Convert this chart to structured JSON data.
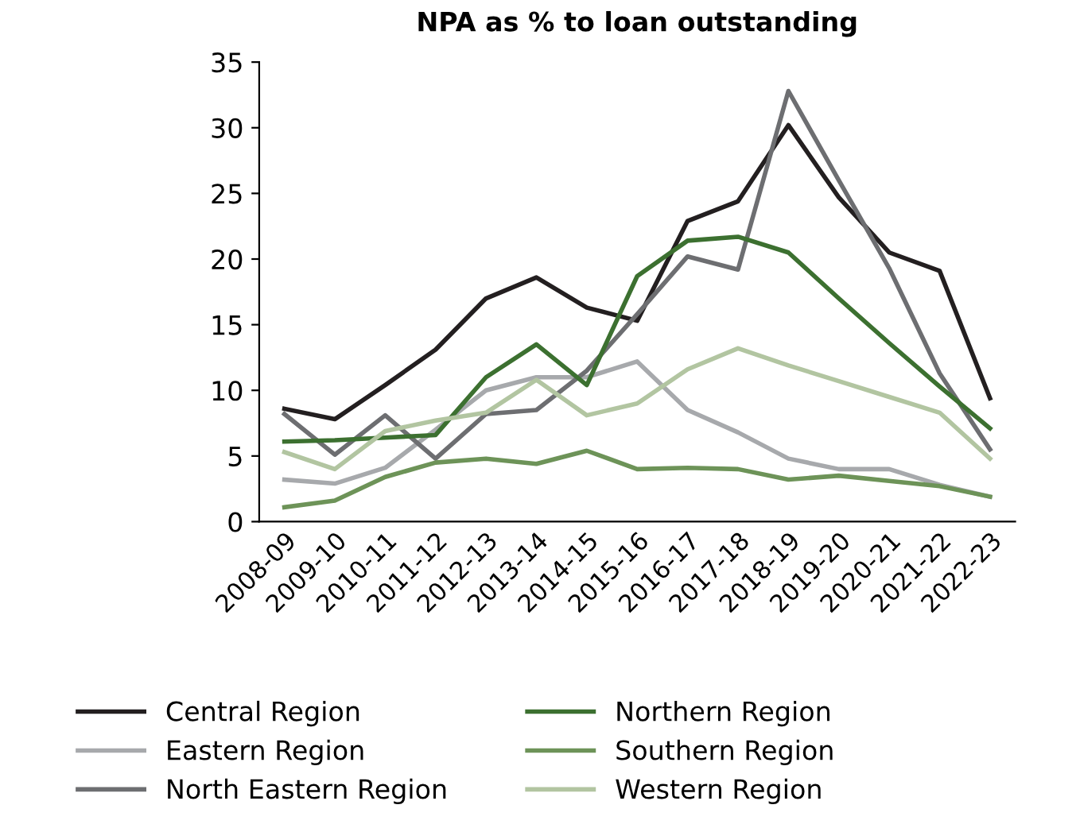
{
  "chart_data": {
    "type": "line",
    "title": "NPA as % to loan outstanding",
    "categories": [
      "2008-09",
      "2009-10",
      "2010-11",
      "2011-12",
      "2012-13",
      "2013-14",
      "2014-15",
      "2015-16",
      "2016-17",
      "2017-18",
      "2018-19",
      "2019-20",
      "2020-21",
      "2021-22",
      "2022-23"
    ],
    "series": [
      {
        "name": "Central Region",
        "color": "#231f20",
        "values": [
          8.6,
          7.8,
          10.4,
          13.1,
          17.0,
          18.6,
          16.3,
          15.3,
          22.9,
          24.4,
          30.2,
          24.7,
          20.5,
          19.1,
          9.4
        ]
      },
      {
        "name": "Eastern Region",
        "color": "#a7a9ac",
        "values": [
          3.2,
          2.9,
          4.1,
          7.0,
          10.0,
          11.0,
          11.0,
          12.2,
          8.5,
          6.8,
          4.8,
          4.0,
          4.0,
          2.8,
          1.9
        ]
      },
      {
        "name": "North Eastern Region",
        "color": "#6d6e71",
        "values": [
          8.2,
          5.1,
          8.1,
          4.8,
          8.2,
          8.5,
          11.5,
          15.8,
          20.2,
          19.2,
          32.8,
          26.0,
          19.3,
          11.3,
          5.5
        ]
      },
      {
        "name": "Northern Region",
        "color": "#3c7030",
        "values": [
          6.1,
          6.2,
          6.4,
          6.6,
          11.0,
          13.5,
          10.4,
          18.7,
          21.4,
          21.7,
          20.5,
          17.0,
          13.6,
          10.3,
          7.1
        ]
      },
      {
        "name": "Southern Region",
        "color": "#6d9358",
        "values": [
          1.1,
          1.6,
          3.4,
          4.5,
          4.8,
          4.4,
          5.4,
          4.0,
          4.1,
          4.0,
          3.2,
          3.5,
          3.1,
          2.7,
          1.9
        ]
      },
      {
        "name": "Western Region",
        "color": "#b2c5a1",
        "values": [
          5.3,
          4.0,
          6.9,
          7.7,
          8.3,
          10.8,
          8.1,
          9.0,
          11.6,
          13.2,
          11.9,
          10.7,
          9.5,
          8.3,
          4.8
        ]
      }
    ],
    "ylim": [
      0,
      35
    ],
    "yticks": [
      0,
      5,
      10,
      15,
      20,
      25,
      30,
      35
    ],
    "grid": false,
    "legend": "bottom",
    "marker": "none",
    "line_style": "solid"
  }
}
